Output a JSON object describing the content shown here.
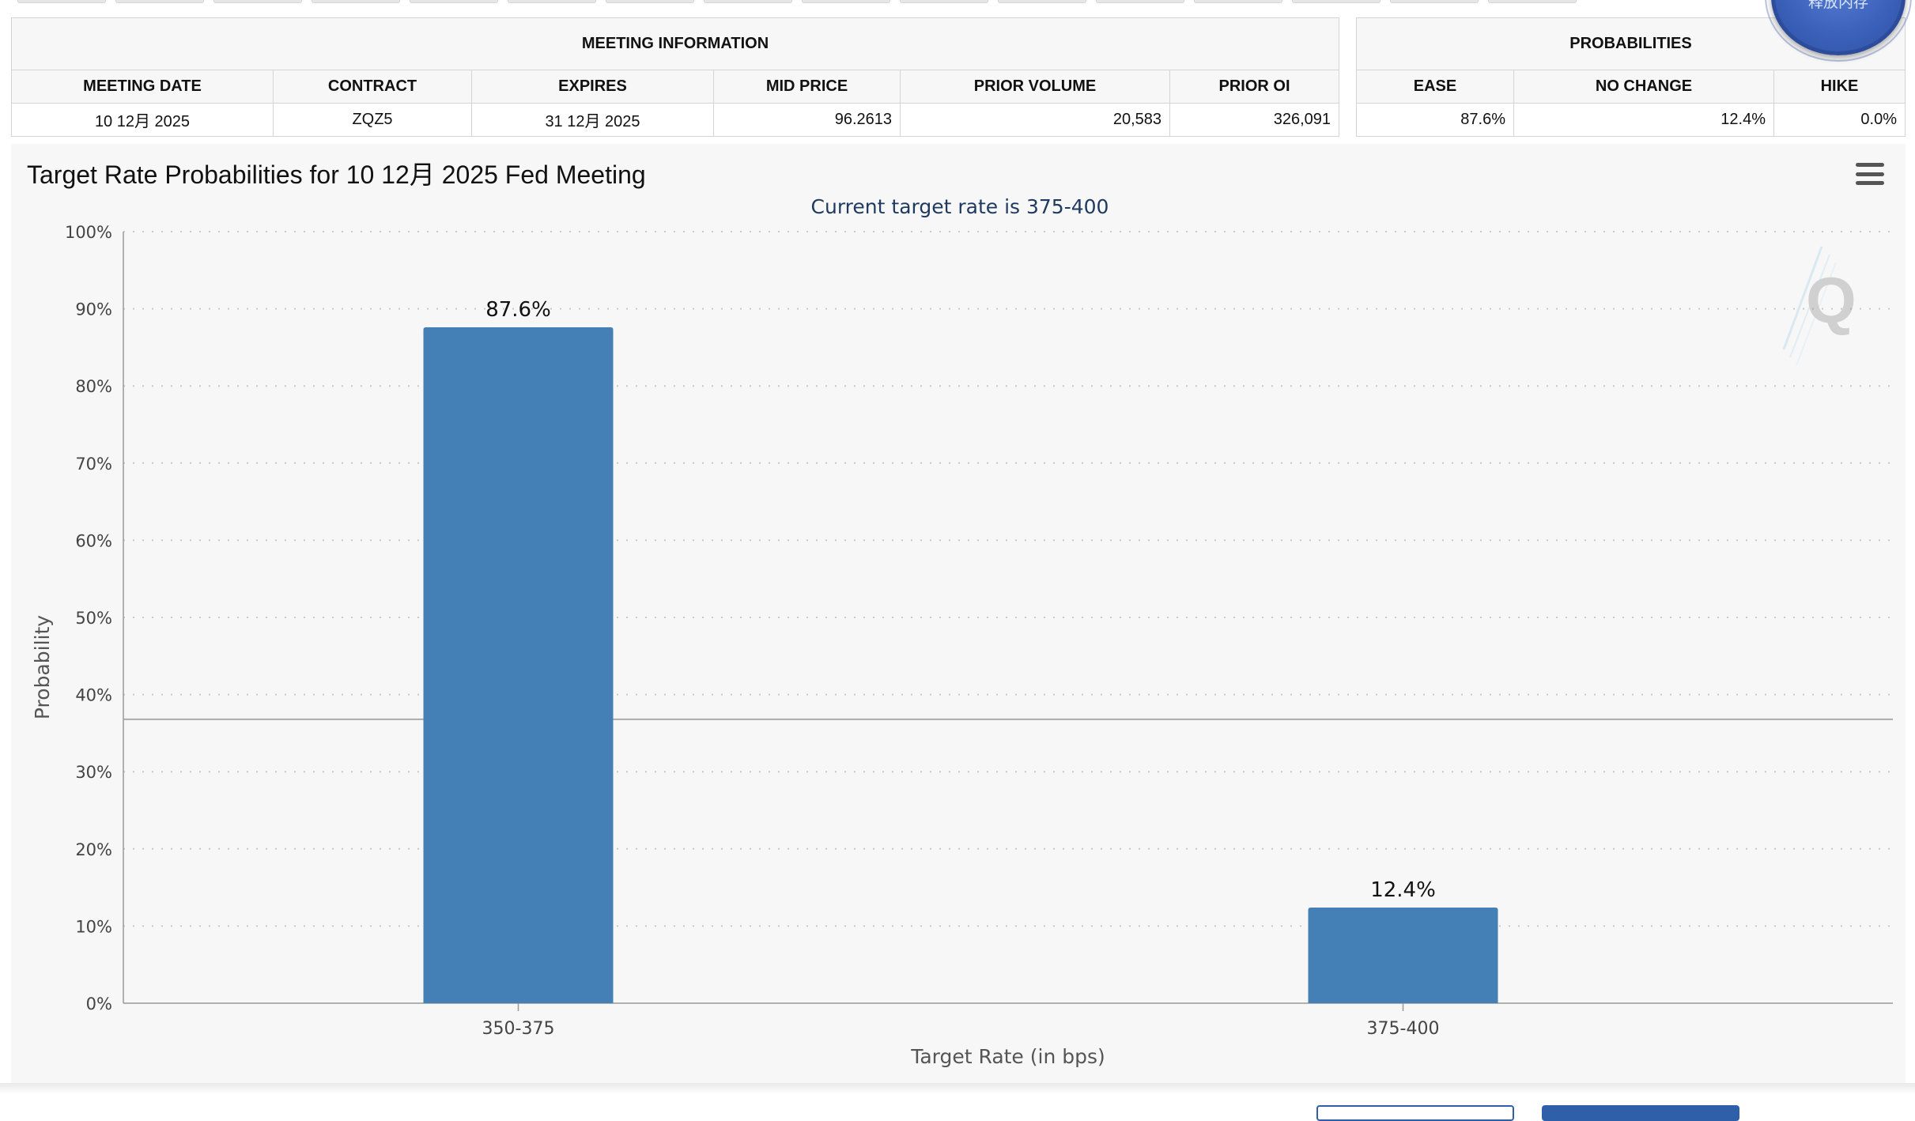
{
  "meeting_info": {
    "group_title": "MEETING INFORMATION",
    "headers": [
      "MEETING DATE",
      "CONTRACT",
      "EXPIRES",
      "MID PRICE",
      "PRIOR VOLUME",
      "PRIOR OI"
    ],
    "row": [
      "10 12月 2025",
      "ZQZ5",
      "31 12月 2025",
      "96.2613",
      "20,583",
      "326,091"
    ]
  },
  "probabilities": {
    "group_title": "PROBABILITIES",
    "headers": [
      "EASE",
      "NO CHANGE",
      "HIKE"
    ],
    "row": [
      "87.6%",
      "12.4%",
      "0.0%"
    ]
  },
  "floating_button": {
    "label": "释放内存"
  },
  "chart_data": {
    "type": "bar",
    "title": "Target Rate Probabilities for 10 12月 2025 Fed Meeting",
    "subtitle": "Current target rate is 375-400",
    "xlabel": "Target Rate (in bps)",
    "ylabel": "Probability",
    "categories": [
      "350-375",
      "375-400"
    ],
    "values": [
      87.6,
      12.4
    ],
    "data_labels": [
      "87.6%",
      "12.4%"
    ],
    "ylim": [
      0,
      100
    ],
    "yticks": [
      0,
      10,
      20,
      30,
      40,
      50,
      60,
      70,
      80,
      90,
      100
    ],
    "ytick_suffix": "%",
    "grid": true,
    "bar_color": "#4480b6",
    "reference_line": 36.8
  }
}
